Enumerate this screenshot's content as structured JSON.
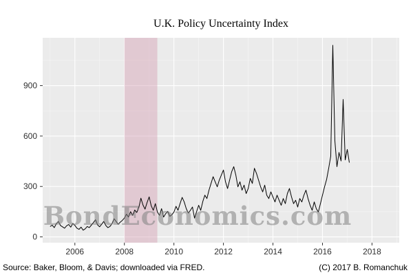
{
  "title": "U.K. Policy Uncertainty Index",
  "watermark": "BondEconomics.com",
  "footer": {
    "source": "Source: Baker, Bloom, & Davis; downloaded via FRED.",
    "copyright": "(C) 2017 B. Romanchuk"
  },
  "colors": {
    "panel_bg": "#ebebeb",
    "grid_major": "#ffffff",
    "grid_minor": "#ffffff",
    "line": "#000000",
    "recession_band": "#d59cb0",
    "tick_text": "#303030",
    "tick_mark": "#333333"
  },
  "chart_data": {
    "type": "line",
    "title": "U.K. Policy Uncertainty Index",
    "xlabel": "",
    "ylabel": "",
    "xlim": [
      2004.7,
      2019.1
    ],
    "ylim": [
      0,
      1150
    ],
    "x_ticks": [
      2006,
      2008,
      2010,
      2012,
      2014,
      2016,
      2018
    ],
    "y_ticks": [
      0,
      300,
      600,
      900
    ],
    "grid": true,
    "legend": "none",
    "recession_shading": {
      "start": 2008.0,
      "end": 2009.33
    },
    "series": [
      {
        "name": "U.K. Policy Uncertainty Index",
        "frequency": "monthly",
        "start": "2005-01",
        "values_by_year": {
          "2005": [
            62,
            70,
            55,
            78,
            92,
            68,
            60,
            52,
            66,
            74,
            58,
            80
          ],
          "2006": [
            68,
            52,
            45,
            58,
            40,
            48,
            62,
            55,
            70,
            85,
            102,
            72
          ],
          "2007": [
            60,
            75,
            92,
            68,
            55,
            62,
            78,
            108,
            92,
            75,
            88,
            98
          ],
          "2008": [
            112,
            135,
            118,
            150,
            128,
            160,
            145,
            175,
            230,
            190,
            165,
            205
          ],
          "2009": [
            238,
            185,
            158,
            198,
            148,
            128,
            168,
            118,
            138,
            152,
            122,
            132
          ],
          "2010": [
            148,
            182,
            158,
            198,
            235,
            208,
            168,
            142,
            158,
            178,
            112,
            150
          ],
          "2011": [
            188,
            158,
            210,
            248,
            228,
            278,
            318,
            358,
            328,
            298,
            338,
            368
          ],
          "2012": [
            398,
            328,
            288,
            338,
            388,
            418,
            368,
            298,
            328,
            278,
            308,
            258
          ],
          "2013": [
            288,
            348,
            318,
            408,
            378,
            338,
            298,
            268,
            308,
            248,
            228,
            268
          ],
          "2014": [
            238,
            208,
            248,
            218,
            188,
            228,
            198,
            258,
            288,
            238,
            198,
            218
          ],
          "2015": [
            178,
            228,
            208,
            248,
            278,
            228,
            188,
            158,
            208,
            168,
            148,
            198
          ],
          "2016": [
            248,
            298,
            342,
            408,
            480,
            1140,
            572,
            418,
            502,
            452,
            818,
            458
          ],
          "2017": [
            520,
            442
          ]
        }
      }
    ]
  }
}
